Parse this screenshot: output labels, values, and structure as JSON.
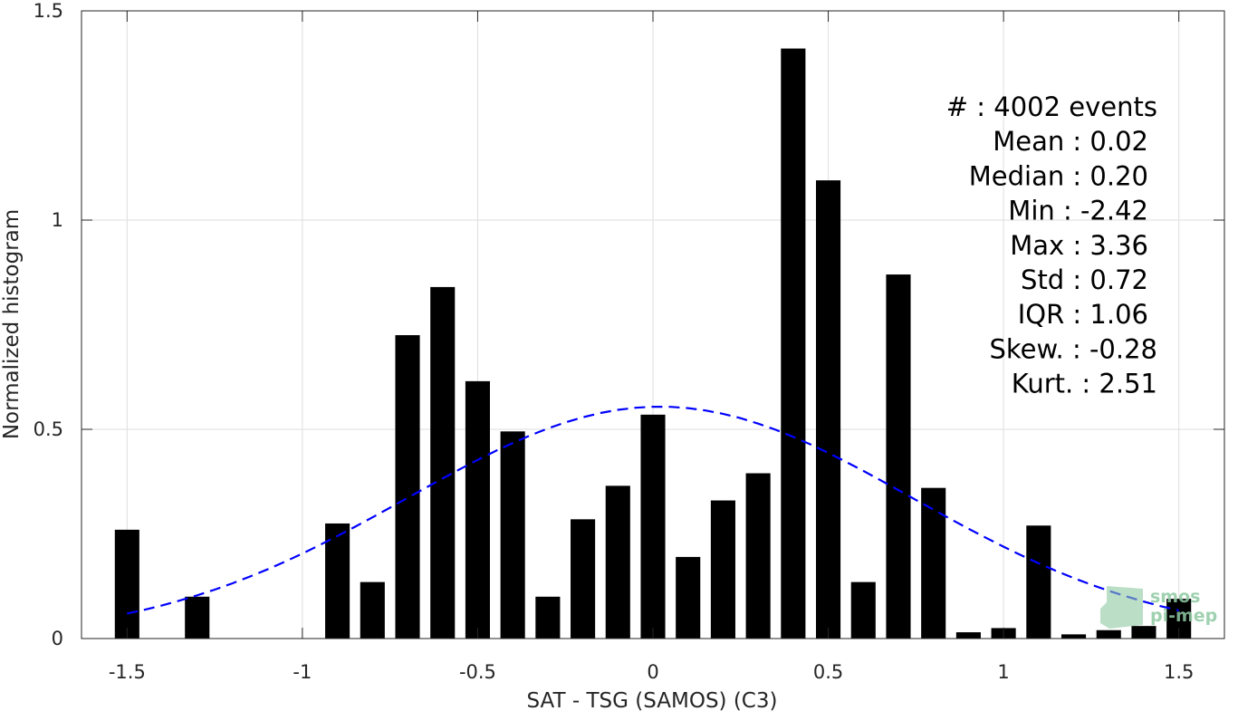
{
  "chart_data": {
    "type": "bar",
    "xlabel": "SAT - TSG (SAMOS) (C3)",
    "ylabel": "Normalized histogram",
    "xlim": [
      -1.63,
      1.63
    ],
    "ylim": [
      0,
      1.5
    ],
    "grid": true,
    "x_ticks": [
      -1.5,
      -1,
      -0.5,
      0,
      0.5,
      1,
      1.5
    ],
    "x_tick_labels": [
      "-1.5",
      "-1",
      "-0.5",
      "0",
      "0.5",
      "1",
      "1.5"
    ],
    "y_ticks": [
      0,
      0.5,
      1,
      1.5
    ],
    "y_tick_labels": [
      "0",
      "0.5",
      "1",
      "1.5"
    ],
    "bin_width": 0.1,
    "bar_width": 0.07,
    "bars": {
      "x": [
        -1.5,
        -1.3,
        -0.9,
        -0.8,
        -0.7,
        -0.6,
        -0.5,
        -0.4,
        -0.3,
        -0.2,
        -0.1,
        0.0,
        0.1,
        0.2,
        0.3,
        0.4,
        0.5,
        0.6,
        0.7,
        0.8,
        0.9,
        1.0,
        1.1,
        1.2,
        1.3,
        1.4,
        1.5
      ],
      "values": [
        0.26,
        0.1,
        0.275,
        0.135,
        0.725,
        0.84,
        0.615,
        0.495,
        0.1,
        0.285,
        0.365,
        0.535,
        0.195,
        0.33,
        0.395,
        1.41,
        1.095,
        0.135,
        0.87,
        0.36,
        0.015,
        0.025,
        0.27,
        0.01,
        0.02,
        0.03,
        0.095
      ],
      "color": "#000000"
    },
    "fit_curve": {
      "style": "dashed",
      "color": "#0000ff",
      "mean": 0.02,
      "std": 0.72,
      "x_range": [
        -1.5,
        1.5
      ]
    },
    "stats": [
      {
        "label": "#  : 4002 events"
      },
      {
        "label": "Mean : 0.02"
      },
      {
        "label": "Median : 0.20"
      },
      {
        "label": "Min : -2.42"
      },
      {
        "label": "Max : 3.36"
      },
      {
        "label": "Std : 0.72"
      },
      {
        "label": "IQR : 1.06"
      },
      {
        "label": "Skew. : -0.28"
      },
      {
        "label": "Kurt. : 2.51"
      }
    ]
  },
  "watermark": {
    "line1": "smos",
    "line2": "pi-mep",
    "color": "#8fc9a3"
  }
}
